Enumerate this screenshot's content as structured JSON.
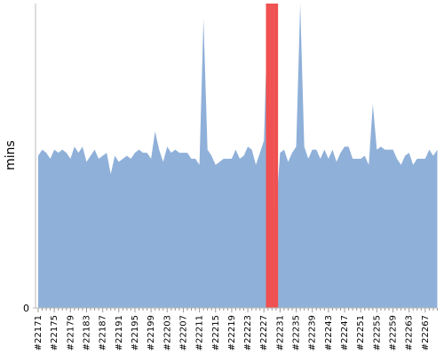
{
  "chart_data": {
    "type": "area",
    "y_label": "mins",
    "categories": [
      "#22171",
      null,
      null,
      null,
      "#22175",
      null,
      null,
      null,
      "#22179",
      null,
      null,
      null,
      "#22183",
      null,
      null,
      null,
      "#22187",
      null,
      null,
      null,
      "#22191",
      null,
      null,
      null,
      "#22195",
      null,
      null,
      null,
      "#22199",
      null,
      null,
      null,
      "#22203",
      null,
      null,
      null,
      "#22207",
      null,
      null,
      null,
      "#22211",
      null,
      null,
      null,
      "#22215",
      null,
      null,
      null,
      "#22219",
      null,
      null,
      null,
      "#22223",
      null,
      null,
      null,
      "#22227",
      null,
      null,
      null,
      "#22231",
      null,
      null,
      null,
      "#22235",
      null,
      null,
      null,
      "#22239",
      null,
      null,
      null,
      "#22243",
      null,
      null,
      null,
      "#22247",
      null,
      null,
      null,
      "#22251",
      null,
      null,
      null,
      "#22255",
      null,
      null,
      null,
      "#22259",
      null,
      null,
      null,
      "#22263",
      null,
      null,
      null,
      "#22267",
      null,
      null,
      null
    ],
    "series": [
      {
        "color": "#8fb0d9",
        "values": [
          50,
          52,
          51,
          49,
          52,
          51,
          52,
          51,
          49,
          53,
          51,
          53,
          48,
          50,
          52,
          49,
          50,
          51,
          44,
          50,
          48,
          49,
          50,
          49,
          51,
          52,
          51,
          51,
          49,
          58,
          52,
          48,
          53,
          51,
          52,
          51,
          51,
          51,
          49,
          49,
          47,
          95,
          52,
          50,
          47,
          48,
          49,
          49,
          49,
          52,
          49,
          50,
          53,
          52,
          47,
          51,
          55,
          100,
          34,
          32,
          51,
          52,
          48,
          51,
          53,
          100,
          53,
          49,
          52,
          52,
          49,
          52,
          49,
          52,
          48,
          51,
          53,
          53,
          49,
          49,
          49,
          50,
          47,
          67,
          52,
          53,
          52,
          52,
          52,
          49,
          47,
          50,
          51,
          47,
          49,
          49,
          49,
          52,
          50,
          52
        ]
      },
      {
        "type": "bar",
        "color": "#f05050",
        "values": [
          null,
          null,
          null,
          null,
          null,
          null,
          null,
          null,
          null,
          null,
          null,
          null,
          null,
          null,
          null,
          null,
          null,
          null,
          null,
          null,
          null,
          null,
          null,
          null,
          null,
          null,
          null,
          null,
          null,
          null,
          null,
          null,
          null,
          null,
          null,
          null,
          null,
          null,
          null,
          null,
          null,
          null,
          null,
          null,
          null,
          null,
          null,
          null,
          null,
          null,
          null,
          null,
          null,
          null,
          null,
          null,
          null,
          100,
          100,
          100,
          null,
          null,
          null,
          null,
          null,
          null,
          null,
          null,
          null,
          null,
          null,
          null,
          null,
          null,
          null,
          null,
          null,
          null,
          null,
          null,
          null,
          null,
          null,
          null,
          null,
          null,
          null,
          null,
          null,
          null,
          null,
          null,
          null,
          null,
          null,
          null,
          null,
          null,
          null,
          null
        ]
      }
    ],
    "ylim": [
      0,
      100
    ],
    "yticks": [
      0
    ]
  }
}
